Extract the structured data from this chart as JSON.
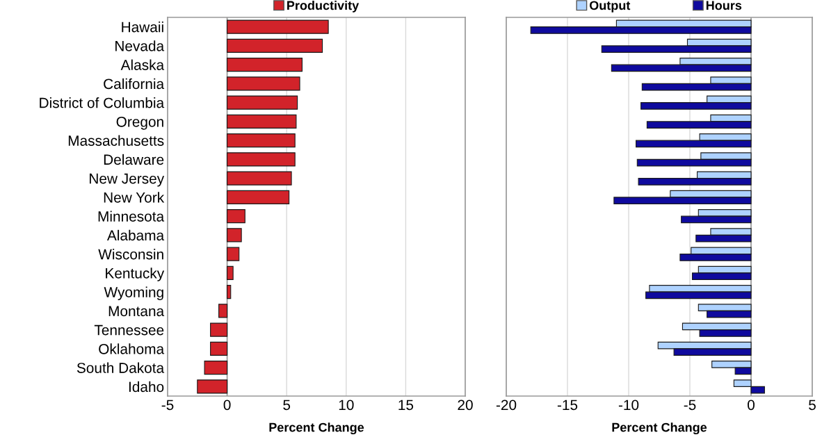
{
  "chart_data": [
    {
      "type": "bar",
      "orientation": "horizontal",
      "xlabel": "Percent Change",
      "categories": [
        "Hawaii",
        "Nevada",
        "Alaska",
        "California",
        "District of Columbia",
        "Oregon",
        "Massachusetts",
        "Delaware",
        "New Jersey",
        "New York",
        "Minnesota",
        "Alabama",
        "Wisconsin",
        "Kentucky",
        "Wyoming",
        "Montana",
        "Tennessee",
        "Oklahoma",
        "South Dakota",
        "Idaho"
      ],
      "series": [
        {
          "name": "Productivity",
          "color": "#d2232a",
          "values": [
            8.5,
            8.0,
            6.3,
            6.1,
            5.9,
            5.8,
            5.7,
            5.7,
            5.4,
            5.2,
            1.5,
            1.2,
            1.0,
            0.5,
            0.3,
            -0.7,
            -1.4,
            -1.4,
            -1.9,
            -2.5
          ]
        }
      ],
      "xlim": [
        -5,
        20
      ],
      "xticks": [
        -5,
        0,
        5,
        10,
        15,
        20
      ],
      "grid": "x",
      "legend": "top"
    },
    {
      "type": "bar",
      "orientation": "horizontal",
      "xlabel": "Percent Change",
      "categories": [
        null,
        null,
        null,
        null,
        null,
        null,
        null,
        null,
        null,
        null,
        null,
        null,
        null,
        null,
        null,
        null,
        null,
        null,
        null,
        null
      ],
      "series": [
        {
          "name": "Output",
          "color": "#aed2ff",
          "values": [
            -11.0,
            -5.2,
            -5.8,
            -3.3,
            -3.6,
            -3.3,
            -4.2,
            -4.1,
            -4.4,
            -6.6,
            -4.3,
            -3.3,
            -4.9,
            -4.3,
            -8.3,
            -4.3,
            -5.6,
            -7.6,
            -3.2,
            -1.4
          ]
        },
        {
          "name": "Hours",
          "color": "#0f0a9e",
          "values": [
            -18.0,
            -12.2,
            -11.4,
            -8.9,
            -9.0,
            -8.5,
            -9.4,
            -9.3,
            -9.2,
            -11.2,
            -5.7,
            -4.5,
            -5.8,
            -4.8,
            -8.6,
            -3.6,
            -4.2,
            -6.3,
            -1.3,
            1.1
          ]
        }
      ],
      "xlim": [
        -20,
        5
      ],
      "xticks": [
        -20,
        -15,
        -10,
        -5,
        0,
        5
      ],
      "grid": "x",
      "legend": "top",
      "tick_labels": "x"
    }
  ]
}
